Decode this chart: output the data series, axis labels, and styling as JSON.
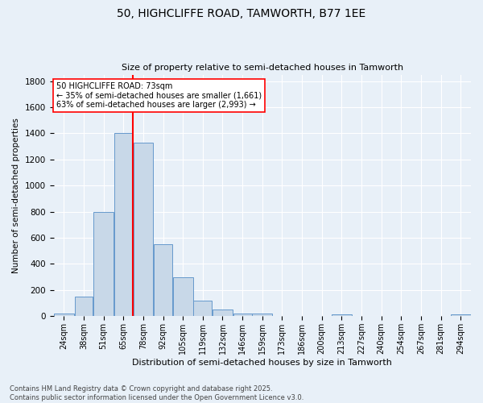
{
  "title1": "50, HIGHCLIFFE ROAD, TAMWORTH, B77 1EE",
  "title2": "Size of property relative to semi-detached houses in Tamworth",
  "xlabel": "Distribution of semi-detached houses by size in Tamworth",
  "ylabel": "Number of semi-detached properties",
  "bin_labels": [
    "24sqm",
    "38sqm",
    "51sqm",
    "65sqm",
    "78sqm",
    "92sqm",
    "105sqm",
    "119sqm",
    "132sqm",
    "146sqm",
    "159sqm",
    "173sqm",
    "186sqm",
    "200sqm",
    "213sqm",
    "227sqm",
    "240sqm",
    "254sqm",
    "267sqm",
    "281sqm",
    "294sqm"
  ],
  "bar_values": [
    20,
    150,
    800,
    1400,
    1330,
    550,
    300,
    120,
    50,
    20,
    20,
    0,
    0,
    0,
    15,
    0,
    0,
    0,
    0,
    0,
    15
  ],
  "bar_color": "#c8d8e8",
  "bar_edge_color": "#6699cc",
  "annotation_line1": "50 HIGHCLIFFE ROAD: 73sqm",
  "annotation_line2": "← 35% of semi-detached houses are smaller (1,661)",
  "annotation_line3": "63% of semi-detached houses are larger (2,993) →",
  "vline_x_idx": 4,
  "vline_color": "red",
  "bin_edges": [
    17,
    31,
    44,
    58,
    71,
    85,
    98,
    112,
    125,
    139,
    152,
    166,
    179,
    193,
    206,
    220,
    233,
    247,
    260,
    274,
    287,
    301
  ],
  "ylim": [
    0,
    1850
  ],
  "yticks": [
    0,
    200,
    400,
    600,
    800,
    1000,
    1200,
    1400,
    1600,
    1800
  ],
  "footnote1": "Contains HM Land Registry data © Crown copyright and database right 2025.",
  "footnote2": "Contains public sector information licensed under the Open Government Licence v3.0.",
  "background_color": "#e8f0f8",
  "grid_color": "white",
  "vline_x_val": 71
}
